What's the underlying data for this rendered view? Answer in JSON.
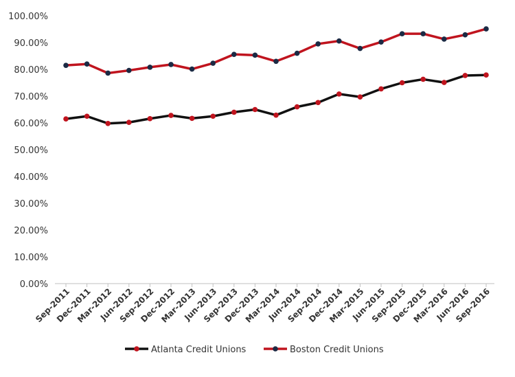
{
  "chart_data": {
    "type": "line",
    "title": "",
    "xlabel": "",
    "ylabel": "",
    "categories": [
      "Sep-2011",
      "Dec-2011",
      "Mar-2012",
      "Jun-2012",
      "Sep-2012",
      "Dec-2012",
      "Mar-2013",
      "Jun-2013",
      "Sep-2013",
      "Dec-2013",
      "Mar-2014",
      "Jun-2014",
      "Sep-2014",
      "Dec-2014",
      "Mar-2015",
      "Jun-2015",
      "Sep-2015",
      "Dec-2015",
      "Mar-2016",
      "Jun-2016",
      "Sep-2016"
    ],
    "ylim": [
      0,
      100
    ],
    "yticks": [
      "0.00%",
      "10.00%",
      "20.00%",
      "30.00%",
      "40.00%",
      "50.00%",
      "60.00%",
      "70.00%",
      "80.00%",
      "90.00%",
      "100.00%"
    ],
    "grid": false,
    "legend_position": "bottom",
    "series": [
      {
        "name": "Atlanta Credit Unions",
        "line_color": "#111111",
        "marker_color": "#c0141e",
        "values": [
          61.5,
          62.5,
          59.8,
          60.2,
          61.6,
          62.8,
          61.7,
          62.5,
          64.0,
          65.0,
          62.9,
          66.0,
          67.6,
          70.8,
          69.7,
          72.7,
          75.0,
          76.3,
          75.1,
          77.7,
          77.9
        ]
      },
      {
        "name": "Boston Credit Unions",
        "line_color": "#c0141e",
        "marker_color": "#1b2a44",
        "values": [
          81.5,
          82.0,
          78.6,
          79.6,
          80.8,
          81.8,
          80.1,
          82.3,
          85.6,
          85.3,
          83.0,
          86.0,
          89.5,
          90.6,
          87.8,
          90.2,
          93.3,
          93.3,
          91.3,
          92.9,
          95.1
        ]
      }
    ]
  }
}
